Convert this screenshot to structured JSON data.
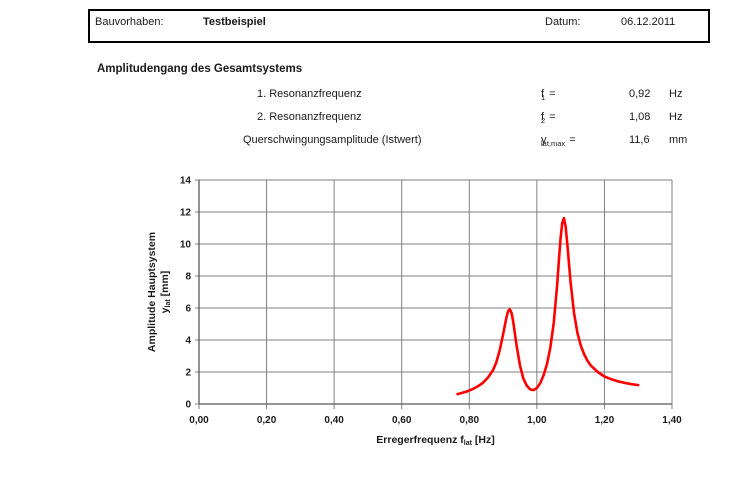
{
  "header": {
    "bauvorhaben_label": "Bauvorhaben:",
    "bauvorhaben_value": "Testbeispiel",
    "datum_label": "Datum:",
    "datum_value": "06.12.2011"
  },
  "section": {
    "title": "Amplitudengang des Gesamtsystems",
    "rows": [
      {
        "label": "1. Resonanzfrequenz",
        "symbol": {
          "base": "f",
          "sub": "1"
        },
        "equals": "=",
        "value": "0,92",
        "unit": "Hz"
      },
      {
        "label": "2. Resonanzfrequenz",
        "symbol": {
          "base": "f",
          "sub": "2"
        },
        "equals": "=",
        "value": "1,08",
        "unit": "Hz"
      },
      {
        "label": "Querschwingungsamplitude (Istwert)",
        "symbol": {
          "base": "y",
          "sub": "lat,max"
        },
        "equals": "=",
        "value": "11,6",
        "unit": "mm"
      }
    ]
  },
  "chart_data": {
    "type": "line",
    "title": "",
    "xlabel": {
      "base": "Erregerfrequenz f",
      "sub": "lat",
      "unit": " [Hz]"
    },
    "ylabel": {
      "line1": "Amplitude Hauptsystem",
      "line2_base": "y",
      "line2_sub": "lat",
      "line2_unit": " [mm]"
    },
    "xlim": [
      0,
      1.4
    ],
    "ylim": [
      0,
      14
    ],
    "x_ticks": [
      0,
      0.2,
      0.4,
      0.6,
      0.8,
      1.0,
      1.2,
      1.4
    ],
    "x_tick_labels": [
      "0,00",
      "0,20",
      "0,40",
      "0,60",
      "0,80",
      "1,00",
      "1,20",
      "1,40"
    ],
    "y_ticks": [
      0,
      2,
      4,
      6,
      8,
      10,
      12,
      14
    ],
    "y_tick_labels": [
      "0",
      "2",
      "4",
      "6",
      "8",
      "10",
      "12",
      "14"
    ],
    "grid": true,
    "legend": false,
    "colors": {
      "line": "#ff0000",
      "grid": "#808080",
      "axis": "#595959",
      "text": "#1a1a1a"
    },
    "series": [
      {
        "name": "Amplitude Hauptsystem",
        "points": [
          [
            0.765,
            0.62
          ],
          [
            0.78,
            0.7
          ],
          [
            0.795,
            0.8
          ],
          [
            0.81,
            0.93
          ],
          [
            0.825,
            1.1
          ],
          [
            0.84,
            1.32
          ],
          [
            0.855,
            1.65
          ],
          [
            0.87,
            2.1
          ],
          [
            0.88,
            2.6
          ],
          [
            0.89,
            3.35
          ],
          [
            0.9,
            4.35
          ],
          [
            0.91,
            5.4
          ],
          [
            0.915,
            5.8
          ],
          [
            0.92,
            5.92
          ],
          [
            0.925,
            5.7
          ],
          [
            0.93,
            5.15
          ],
          [
            0.94,
            3.65
          ],
          [
            0.95,
            2.4
          ],
          [
            0.96,
            1.6
          ],
          [
            0.97,
            1.15
          ],
          [
            0.98,
            0.92
          ],
          [
            0.99,
            0.87
          ],
          [
            1.0,
            1.0
          ],
          [
            1.01,
            1.3
          ],
          [
            1.02,
            1.8
          ],
          [
            1.03,
            2.5
          ],
          [
            1.04,
            3.55
          ],
          [
            1.05,
            5.1
          ],
          [
            1.06,
            7.4
          ],
          [
            1.065,
            8.9
          ],
          [
            1.07,
            10.3
          ],
          [
            1.075,
            11.3
          ],
          [
            1.08,
            11.62
          ],
          [
            1.085,
            11.1
          ],
          [
            1.09,
            10.0
          ],
          [
            1.1,
            7.6
          ],
          [
            1.11,
            5.7
          ],
          [
            1.12,
            4.45
          ],
          [
            1.13,
            3.65
          ],
          [
            1.14,
            3.1
          ],
          [
            1.15,
            2.7
          ],
          [
            1.16,
            2.4
          ],
          [
            1.18,
            2.0
          ],
          [
            1.2,
            1.72
          ],
          [
            1.22,
            1.55
          ],
          [
            1.24,
            1.42
          ],
          [
            1.26,
            1.32
          ],
          [
            1.28,
            1.24
          ],
          [
            1.3,
            1.18
          ]
        ]
      }
    ]
  }
}
